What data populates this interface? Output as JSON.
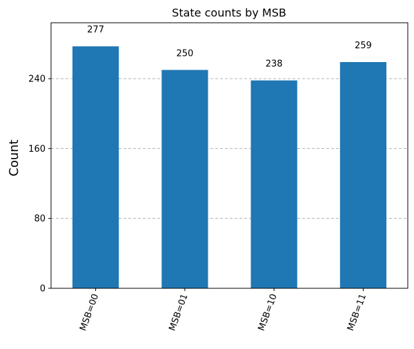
{
  "chart_data": {
    "type": "bar",
    "title": "State counts by MSB",
    "xlabel": "",
    "ylabel": "Count",
    "categories": [
      "MSB=00",
      "MSB=01",
      "MSB=10",
      "MSB=11"
    ],
    "values": [
      277,
      250,
      238,
      259
    ],
    "data_labels": [
      "277",
      "250",
      "238",
      "259"
    ],
    "ylim": [
      0,
      304
    ],
    "yticks": [
      0,
      80,
      160,
      240
    ],
    "ytick_labels": [
      "0",
      "80",
      "160",
      "240"
    ],
    "grid": "y-dashed",
    "x_tick_rotation_deg": -70,
    "legend": "none",
    "colors": {
      "bar": "#1f77b4",
      "grid": "#b0b0b0"
    }
  }
}
